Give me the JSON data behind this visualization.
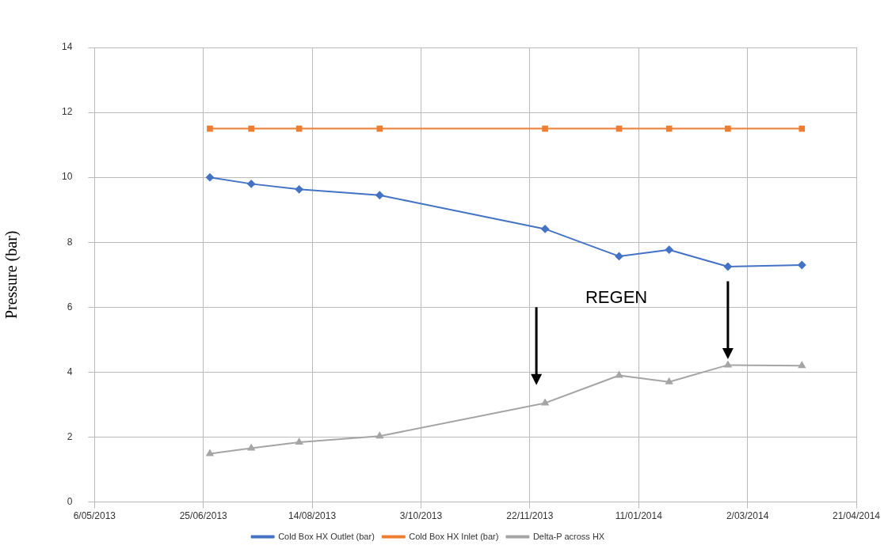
{
  "chart_data": {
    "type": "line",
    "ylabel": "Pressure (bar)",
    "x": [
      "2013-06-28",
      "2013-07-17",
      "2013-08-08",
      "2013-09-14",
      "2013-11-29",
      "2014-01-02",
      "2014-01-25",
      "2014-02-21",
      "2014-03-27"
    ],
    "series": [
      {
        "name": "Cold Box HX Outlet (bar)",
        "color": "#4472c4",
        "marker": "diamond",
        "values": [
          10.0,
          9.8,
          9.63,
          9.45,
          8.41,
          7.57,
          7.77,
          7.25,
          7.3
        ]
      },
      {
        "name": "Cold Box HX Inlet (bar)",
        "color": "#ed7d31",
        "marker": "square",
        "values": [
          11.5,
          11.5,
          11.5,
          11.5,
          11.5,
          11.5,
          11.5,
          11.5,
          11.5
        ]
      },
      {
        "name": "Delta-P across HX",
        "color": "#a5a5a5",
        "marker": "triangle",
        "values": [
          1.49,
          1.66,
          1.84,
          2.03,
          3.05,
          3.9,
          3.7,
          4.22,
          4.2
        ]
      }
    ],
    "xlim": [
      "2013-05-06",
      "2014-04-21"
    ],
    "xticks": [
      {
        "value": "2013-05-06",
        "label": "6/05/2013"
      },
      {
        "value": "2013-06-25",
        "label": "25/06/2013"
      },
      {
        "value": "2013-08-14",
        "label": "14/08/2013"
      },
      {
        "value": "2013-10-03",
        "label": "3/10/2013"
      },
      {
        "value": "2013-11-22",
        "label": "22/11/2013"
      },
      {
        "value": "2014-01-11",
        "label": "11/01/2014"
      },
      {
        "value": "2014-03-02",
        "label": "2/03/2014"
      },
      {
        "value": "2014-04-21",
        "label": "21/04/2014"
      }
    ],
    "ylim": [
      0,
      14
    ],
    "yticks": [
      0,
      2,
      4,
      6,
      8,
      10,
      12,
      14
    ],
    "grid": true,
    "legend": "bottom",
    "annotations": [
      "REGEN"
    ]
  }
}
